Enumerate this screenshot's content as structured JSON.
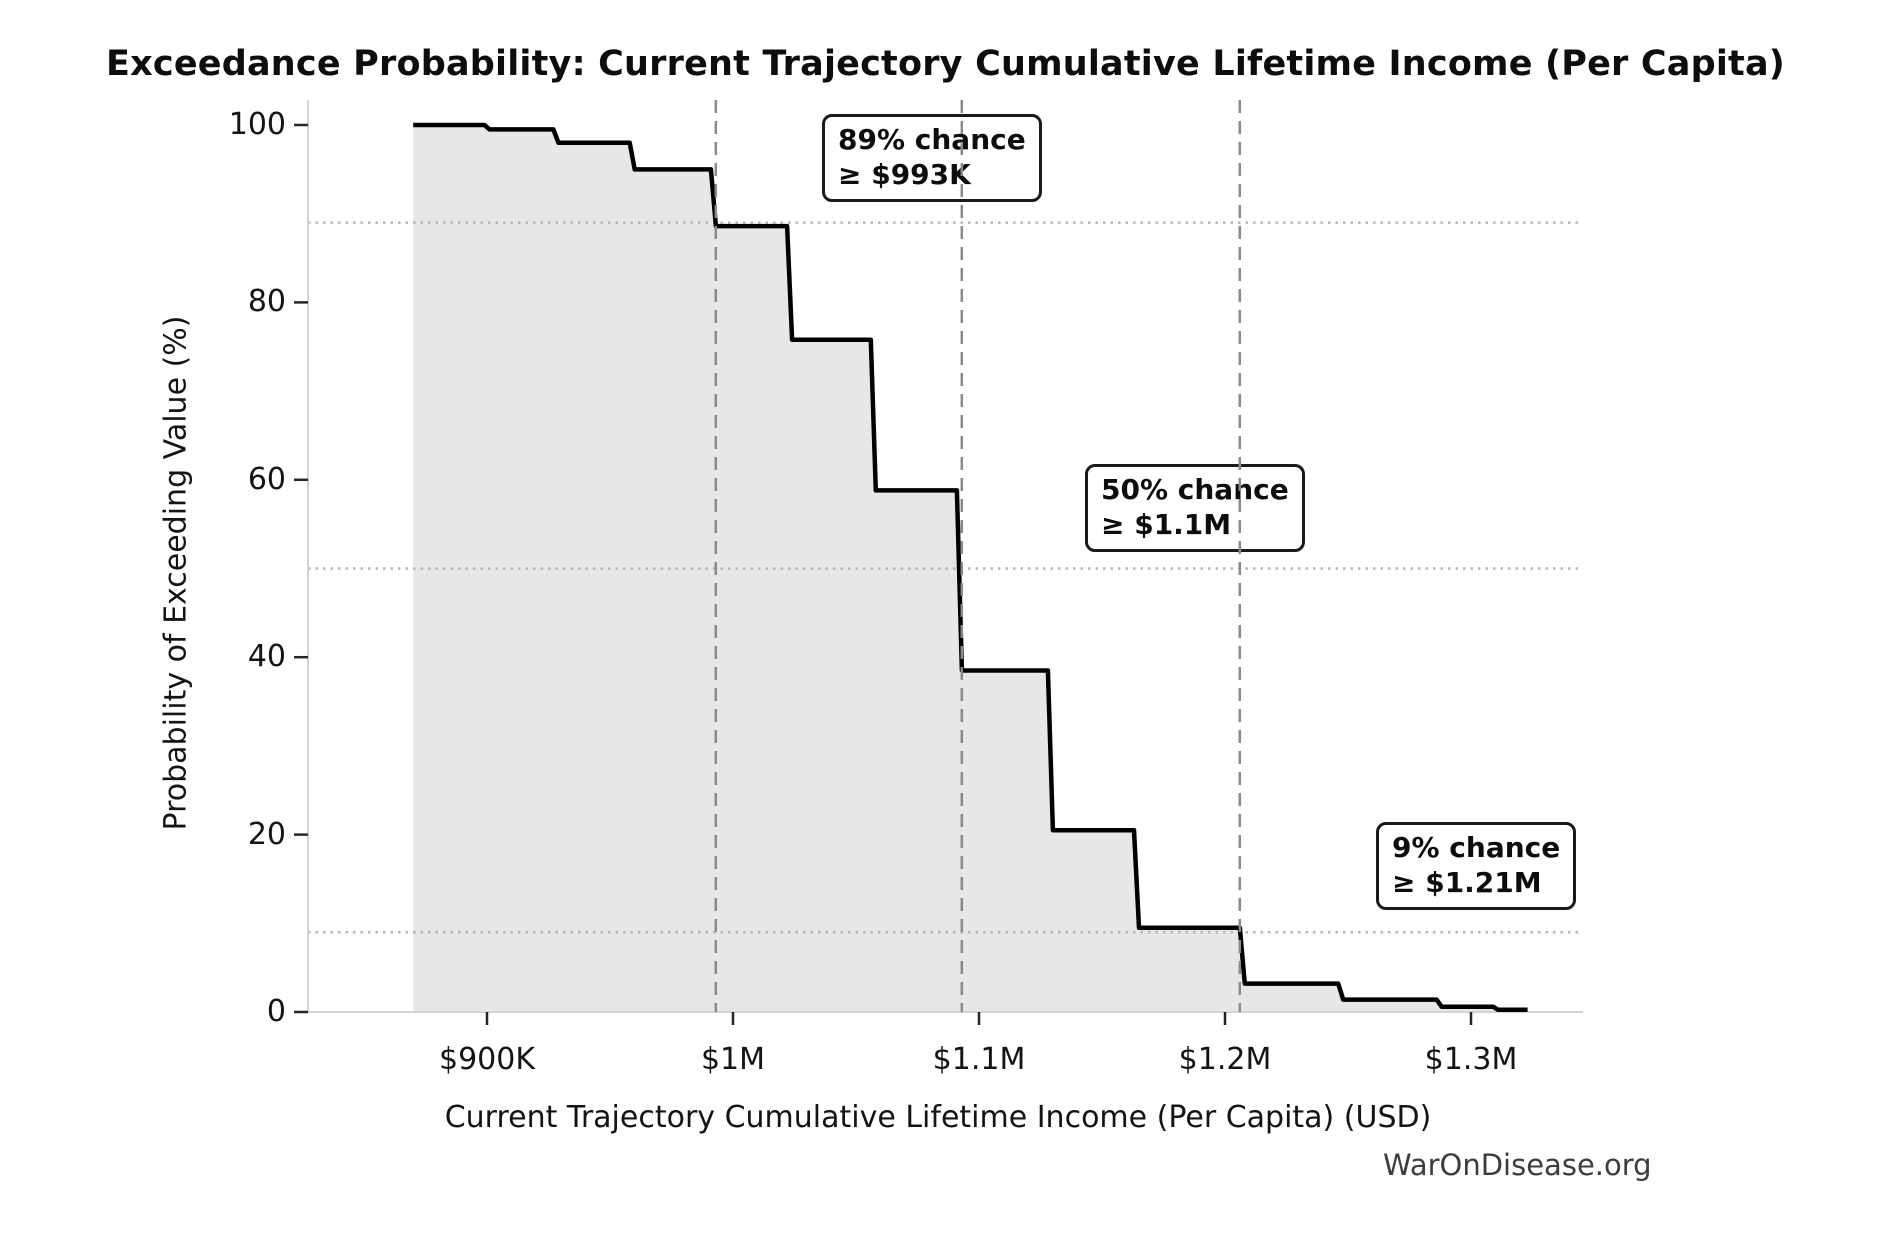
{
  "title": "Exceedance Probability: Current Trajectory Cumulative Lifetime Income (Per Capita)",
  "watermark": "WarOnDisease.org",
  "chart_data": {
    "type": "area",
    "subtype": "exceedance-step-curve",
    "title": "Exceedance Probability: Current Trajectory Cumulative Lifetime Income (Per Capita)",
    "xlabel": "Current Trajectory Cumulative Lifetime Income (Per Capita) (USD)",
    "ylabel": "Probability of Exceeding Value (%)",
    "x_units": "thousands of USD",
    "xlim_kusd": [
      827,
      1332
    ],
    "ylim_pct": [
      0,
      103
    ],
    "grid": "off",
    "x_tick_values_kusd": [
      900,
      1000,
      1100,
      1200,
      1300
    ],
    "x_tick_labels": [
      "$900K",
      "$1M",
      "$1.1M",
      "$1.2M",
      "$1.3M"
    ],
    "y_ticks": [
      0,
      20,
      40,
      60,
      80,
      100
    ],
    "curve_start_point_kusd_pct": [
      870,
      100
    ],
    "curve_steps_kusd_pct": [
      [
        899,
        99.5
      ],
      [
        927,
        98.0
      ],
      [
        958,
        95.0
      ],
      [
        991,
        88.6
      ],
      [
        1022,
        75.8
      ],
      [
        1056,
        58.8
      ],
      [
        1091,
        38.5
      ],
      [
        1128,
        20.5
      ],
      [
        1163,
        9.5
      ],
      [
        1206,
        3.2
      ],
      [
        1246,
        1.4
      ],
      [
        1286,
        0.6
      ],
      [
        1309,
        0.25
      ]
    ],
    "curve_end_kusd": 1323,
    "annotations": [
      {
        "label_line1": "89% chance",
        "label_line2": "≥ $993K",
        "vline_kusd": 993,
        "hline_pct": 89
      },
      {
        "label_line1": "50% chance",
        "label_line2": "≥ $1.1M",
        "vline_kusd": 1093,
        "hline_pct": 50
      },
      {
        "label_line1": "9% chance",
        "label_line2": "≥ $1.21M",
        "vline_kusd": 1206,
        "hline_pct": 9
      }
    ],
    "colors": {
      "line": "#000000",
      "fill": "#e7e7e7",
      "dashed_vline": "#8a8a8a",
      "dotted_hline": "#b5b5b5",
      "spine": "#d4d4d4",
      "tick": "#262626",
      "text": "#141414"
    }
  }
}
